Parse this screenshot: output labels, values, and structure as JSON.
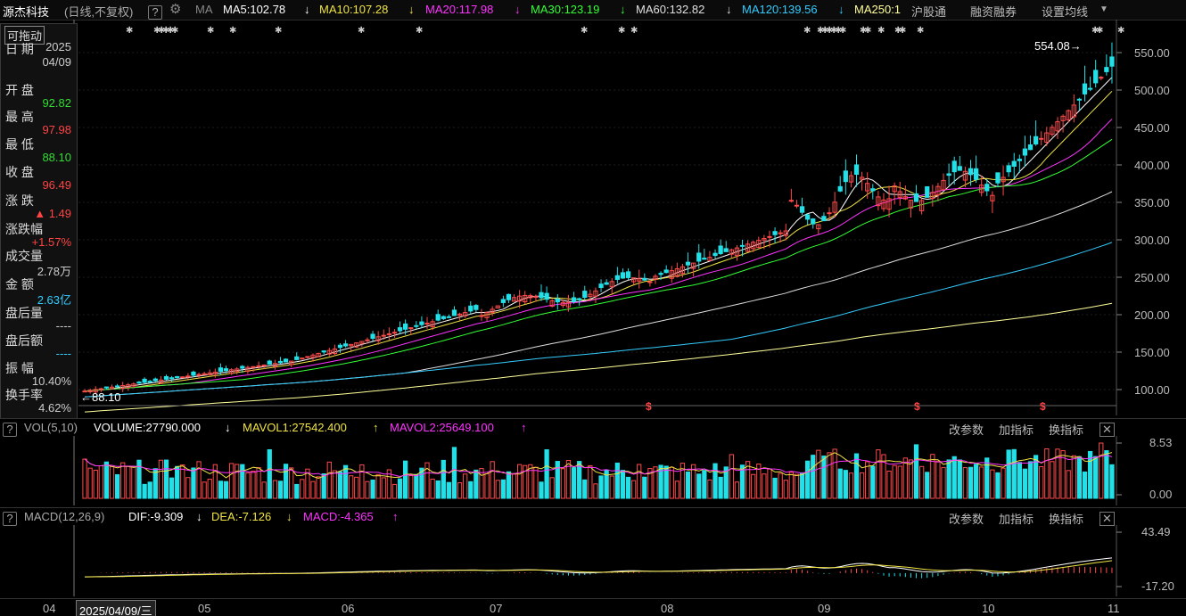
{
  "topbar": {
    "stock_name": "源杰科技",
    "mode": "(日线,不复权)",
    "help": "?",
    "ma_label": "MA",
    "ma": [
      {
        "name": "MA5",
        "value": "MA5:102.78",
        "color": "#ffffff"
      },
      {
        "name": "MA10",
        "value": "MA10:107.28",
        "color": "#f0e442"
      },
      {
        "name": "MA20",
        "value": "MA20:117.98",
        "color": "#ff33ff"
      },
      {
        "name": "MA30",
        "value": "MA30:123.19",
        "color": "#33ff33"
      },
      {
        "name": "MA60",
        "value": "MA60:132.82",
        "color": "#e0e0e0"
      },
      {
        "name": "MA120",
        "value": "MA120:139.56",
        "color": "#33ccff"
      },
      {
        "name": "MA250",
        "value": "MA250:1",
        "color": "#ffff99"
      }
    ],
    "menu": [
      "沪股通",
      "融资融券",
      "设置均线"
    ]
  },
  "info_panel": {
    "drag_label": "可拖动",
    "rows": [
      {
        "label": "日  期",
        "value": "2025\n04/09",
        "color": "#cccccc"
      },
      {
        "label": "开  盘",
        "value": "92.82",
        "color": "#33dd33"
      },
      {
        "label": "最  高",
        "value": "97.98",
        "color": "#ff4444"
      },
      {
        "label": "最  低",
        "value": "88.10",
        "color": "#33dd33"
      },
      {
        "label": "收  盘",
        "value": "96.49",
        "color": "#ff4444"
      },
      {
        "label": "涨  跌",
        "value": "▲ 1.49",
        "color": "#ff4444"
      },
      {
        "label": "涨跌幅",
        "value": "+1.57%",
        "color": "#ff4444"
      },
      {
        "label": "成交量",
        "value": "2.78万",
        "color": "#cccccc"
      },
      {
        "label": "金  额",
        "value": "2.63亿",
        "color": "#33ccff"
      },
      {
        "label": "盘后量",
        "value": "----",
        "color": "#cccccc"
      },
      {
        "label": "盘后额",
        "value": "----",
        "color": "#33ccff"
      },
      {
        "label": "振  幅",
        "value": "10.40%",
        "color": "#cccccc"
      },
      {
        "label": "换手率",
        "value": "4.62%",
        "color": "#cccccc"
      }
    ]
  },
  "price_chart": {
    "high_marker": "554.08",
    "low_marker": "88.10",
    "y_ticks": [
      "550.00",
      "500.00",
      "450.00",
      "400.00",
      "350.00",
      "300.00",
      "250.00",
      "200.00",
      "150.00",
      "100.00"
    ],
    "colors": {
      "up": "#ff4a4a",
      "down": "#22e0e8",
      "ma5": "#ffffff",
      "ma10": "#f0e442",
      "ma20": "#ff33ff",
      "ma30": "#33ff33",
      "ma60": "#dddddd",
      "ma120": "#33ccff",
      "ma250": "#ffff99"
    }
  },
  "volume_panel": {
    "title": "VOL(5,10)",
    "volume": "VOLUME:27790.000",
    "mavol1": "MAVOL1:27542.400",
    "mavol2": "MAVOL2:25649.100",
    "buttons": [
      "改参数",
      "加指标",
      "换指标"
    ],
    "y_ticks": [
      "8.53",
      "0.00"
    ]
  },
  "macd_panel": {
    "title": "MACD(12,26,9)",
    "dif": "DIF:-9.309",
    "dea": "DEA:-7.126",
    "macd": "MACD:-4.365",
    "buttons": [
      "改参数",
      "加指标",
      "换指标"
    ],
    "y_ticks": [
      "43.49",
      "-17.20"
    ]
  },
  "x_axis": {
    "labels": [
      "04",
      "05",
      "06",
      "07",
      "08",
      "09",
      "10",
      "11"
    ],
    "cursor_date": "2025/04/09/三"
  }
}
